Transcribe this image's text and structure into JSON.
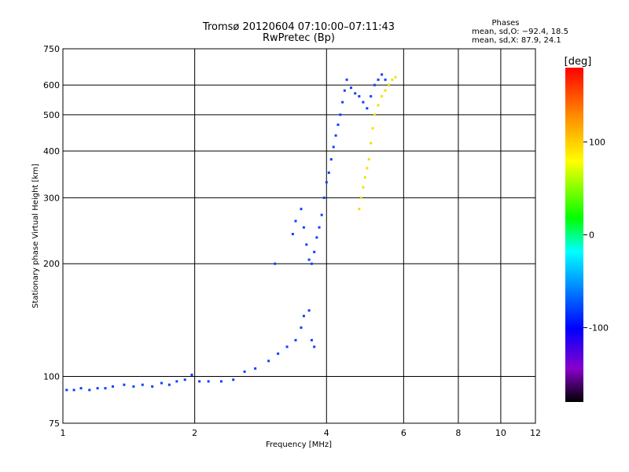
{
  "chart_data": {
    "type": "scatter",
    "title": "Tromsø 20120604 07:10:00–07:11:43",
    "subtitle": "RwPretec (Bp)",
    "xlabel": "Frequency [MHz]",
    "ylabel": "Stationary phase Virtual Height [km]",
    "x_scale": "log",
    "y_scale": "log",
    "xlim": [
      1,
      12
    ],
    "ylim": [
      75,
      750
    ],
    "x_ticks": [
      1,
      2,
      4,
      6,
      8,
      10,
      12
    ],
    "y_ticks": [
      75,
      100,
      200,
      300,
      400,
      500,
      600,
      750
    ],
    "x_grid": [
      1,
      2,
      4,
      6,
      8,
      10,
      12
    ],
    "y_grid": [
      100,
      200,
      300,
      400,
      500,
      600
    ],
    "grid": true,
    "phases": {
      "heading": "Phases",
      "line_o": "mean, sd,O: −92.4, 18.5",
      "line_x": "mean, sd,X:  87.9, 24.1"
    },
    "colorbar": {
      "label": "[deg]",
      "range": [
        -180,
        180
      ],
      "ticks": [
        100,
        0,
        -100
      ],
      "tick_labels": [
        "100",
        "0",
        "-100"
      ],
      "colors": [
        "#ff0000",
        "#ff8800",
        "#ffff00",
        "#00ff00",
        "#00ffff",
        "#0000ff",
        "#8800cc",
        "#000000"
      ]
    },
    "series": [
      {
        "comment_role": "O-mode trace",
        "color": "#1040ff",
        "points": [
          [
            1.02,
            92
          ],
          [
            1.06,
            92
          ],
          [
            1.1,
            93
          ],
          [
            1.15,
            92
          ],
          [
            1.2,
            93
          ],
          [
            1.25,
            93
          ],
          [
            1.3,
            94
          ],
          [
            1.38,
            95
          ],
          [
            1.45,
            94
          ],
          [
            1.52,
            95
          ],
          [
            1.6,
            94
          ],
          [
            1.68,
            96
          ],
          [
            1.75,
            95
          ],
          [
            1.82,
            97
          ],
          [
            1.9,
            98
          ],
          [
            1.97,
            101
          ],
          [
            2.05,
            97
          ],
          [
            2.15,
            97
          ],
          [
            2.3,
            97
          ],
          [
            2.45,
            98
          ],
          [
            2.6,
            103
          ],
          [
            2.75,
            105
          ],
          [
            2.95,
            110
          ],
          [
            3.1,
            115
          ],
          [
            3.25,
            120
          ],
          [
            3.4,
            125
          ],
          [
            3.5,
            135
          ],
          [
            3.55,
            145
          ],
          [
            3.65,
            150
          ],
          [
            3.7,
            125
          ],
          [
            3.75,
            120
          ],
          [
            3.05,
            200
          ],
          [
            3.35,
            240
          ],
          [
            3.4,
            260
          ],
          [
            3.5,
            280
          ],
          [
            3.55,
            250
          ],
          [
            3.6,
            225
          ],
          [
            3.65,
            205
          ],
          [
            3.7,
            200
          ],
          [
            3.75,
            215
          ],
          [
            3.8,
            235
          ],
          [
            3.85,
            250
          ],
          [
            3.9,
            270
          ],
          [
            3.95,
            300
          ],
          [
            4.0,
            330
          ],
          [
            4.05,
            350
          ],
          [
            4.1,
            380
          ],
          [
            4.15,
            410
          ],
          [
            4.2,
            440
          ],
          [
            4.25,
            470
          ],
          [
            4.3,
            500
          ],
          [
            4.35,
            540
          ],
          [
            4.4,
            580
          ],
          [
            4.45,
            620
          ],
          [
            4.55,
            590
          ],
          [
            4.65,
            570
          ],
          [
            4.75,
            560
          ],
          [
            4.85,
            540
          ],
          [
            4.95,
            520
          ],
          [
            5.05,
            560
          ],
          [
            5.15,
            600
          ],
          [
            5.25,
            620
          ],
          [
            5.35,
            640
          ],
          [
            5.45,
            620
          ],
          [
            5.55,
            600
          ]
        ]
      },
      {
        "comment_role": "X-mode trace",
        "color": "#f0e000",
        "points": [
          [
            4.75,
            280
          ],
          [
            4.8,
            300
          ],
          [
            4.85,
            320
          ],
          [
            4.9,
            340
          ],
          [
            4.95,
            360
          ],
          [
            5.0,
            380
          ],
          [
            5.05,
            420
          ],
          [
            5.1,
            460
          ],
          [
            5.15,
            500
          ],
          [
            5.25,
            530
          ],
          [
            5.35,
            560
          ],
          [
            5.45,
            580
          ],
          [
            5.55,
            600
          ],
          [
            5.65,
            620
          ],
          [
            5.75,
            630
          ]
        ]
      }
    ]
  }
}
